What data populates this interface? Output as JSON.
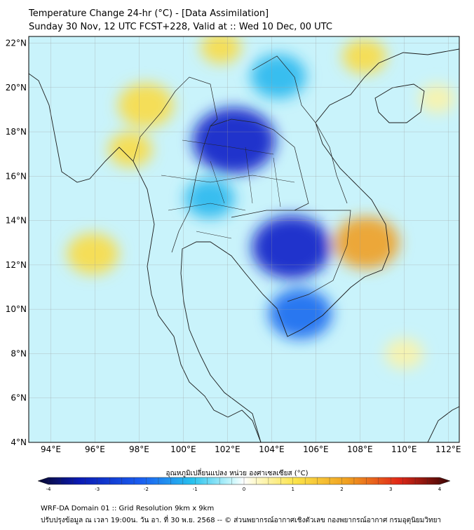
{
  "header": {
    "title": "Temperature Change 24-hr (°C) - [Data Assimilation]",
    "subtitle": "Sunday 30 Nov, 12 UTC FCST+228, Valid at :: Wed 10 Dec, 00 UTC"
  },
  "map": {
    "lon_range": [
      93,
      112.5
    ],
    "lat_range": [
      4,
      22.3
    ],
    "lat_ticks": [
      "22°N",
      "20°N",
      "18°N",
      "16°N",
      "14°N",
      "12°N",
      "10°N",
      "8°N",
      "6°N",
      "4°N"
    ],
    "lat_values": [
      22,
      20,
      18,
      16,
      14,
      12,
      10,
      8,
      6,
      4
    ],
    "lon_ticks": [
      "94°E",
      "96°E",
      "98°E",
      "100°E",
      "102°E",
      "104°E",
      "106°E",
      "108°E",
      "110°E",
      "112°E"
    ],
    "lon_values": [
      94,
      96,
      98,
      100,
      102,
      104,
      106,
      108,
      110,
      112
    ],
    "background_color": "#c9f3fb",
    "anomalies": [
      {
        "name": "cold-northeast-thailand",
        "lon": 102.3,
        "lat": 17.6,
        "value": -3.2
      },
      {
        "name": "cold-cambodia-lake",
        "lon": 104.9,
        "lat": 12.8,
        "value": -3.0
      },
      {
        "name": "cold-mekong-delta",
        "lon": 105.3,
        "lat": 9.8,
        "value": -2.2
      },
      {
        "name": "cold-north-laos",
        "lon": 104.3,
        "lat": 20.5,
        "value": -1.8
      },
      {
        "name": "cold-central-thailand",
        "lon": 101.2,
        "lat": 15.0,
        "value": -1.5
      },
      {
        "name": "warm-vietnam-highlands",
        "lon": 108.3,
        "lat": 13.0,
        "value": 2.3
      },
      {
        "name": "warm-north-thailand",
        "lon": 98.3,
        "lat": 19.2,
        "value": 1.8
      },
      {
        "name": "warm-andaman-sea",
        "lon": 95.9,
        "lat": 12.5,
        "value": 1.6
      },
      {
        "name": "warm-myanmar-north",
        "lon": 97.6,
        "lat": 17.2,
        "value": 1.2
      },
      {
        "name": "warm-south-china-sea",
        "lon": 110.0,
        "lat": 8.0,
        "value": 0.9
      },
      {
        "name": "warm-gulf-tonkin",
        "lon": 108.2,
        "lat": 21.4,
        "value": 1.2
      },
      {
        "name": "warm-north-border",
        "lon": 101.7,
        "lat": 21.8,
        "value": 1.0
      },
      {
        "name": "warm-hainan-east",
        "lon": 111.5,
        "lat": 19.5,
        "value": 0.8
      }
    ]
  },
  "colorbar": {
    "title": "อุณหภูมิเปลี่ยนแปลง หน่วย องศาเซลเซียส (°C)",
    "min": -4,
    "max": 4,
    "ticks": [
      "-4",
      "-3",
      "-2",
      "-1",
      "0",
      "1",
      "2",
      "3",
      "4"
    ],
    "tick_values": [
      -4,
      -3,
      -2,
      -1,
      0,
      1,
      2,
      3,
      4
    ]
  },
  "footer": {
    "line1": "WRF-DA Domain 01 :: Grid Resolution 9km x 9km",
    "line2": "ปรับปรุงข้อมูล ณ เวลา 19:00น. วัน อา. ที่ 30 พ.ย. 2568 -- © ส่วนพยากรณ์อากาศเชิงตัวเลข กองพยากรณ์อากาศ กรมอุตุนิยมวิทยา"
  }
}
